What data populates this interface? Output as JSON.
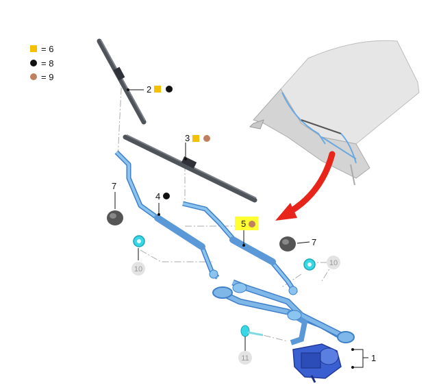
{
  "legend": [
    {
      "symbol": "yellow-square",
      "text": "= 6",
      "color": "#f5c000"
    },
    {
      "symbol": "black-circle",
      "text": "= 8",
      "color": "#111111"
    },
    {
      "symbol": "brown-circle",
      "text": "= 9",
      "color": "#c08060"
    }
  ],
  "callouts": {
    "c1": "1",
    "c2": "2",
    "c3": "3",
    "c4": "4",
    "c5": "5",
    "c7a": "7",
    "c7b": "7",
    "c10a": "10",
    "c10b": "10",
    "c11": "11"
  },
  "colors": {
    "part_blue": "#7fb8e8",
    "part_blue_dark": "#3f7fc8",
    "motor_blue": "#3a5fd0",
    "blade_gray": "#5a5e66",
    "cyan_clip": "#39d6e6",
    "arrow_red": "#e8251b",
    "highlight_yellow": "#ffff33",
    "car_gray": "#d8d8d8"
  }
}
